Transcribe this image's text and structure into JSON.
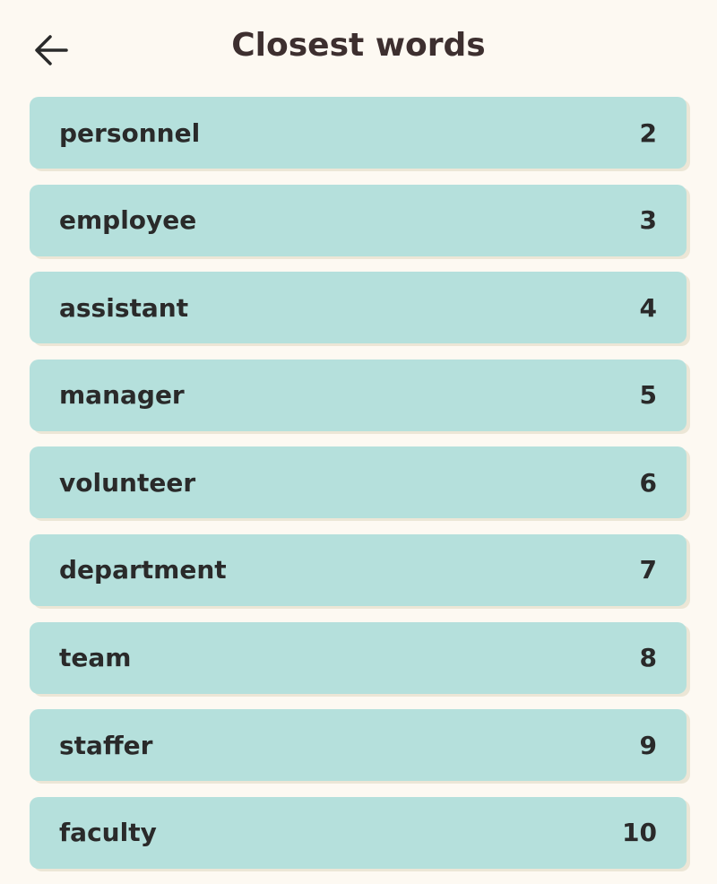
{
  "header": {
    "title": "Closest words"
  },
  "list": [
    {
      "word": "personnel",
      "rank": 2
    },
    {
      "word": "employee",
      "rank": 3
    },
    {
      "word": "assistant",
      "rank": 4
    },
    {
      "word": "manager",
      "rank": 5
    },
    {
      "word": "volunteer",
      "rank": 6
    },
    {
      "word": "department",
      "rank": 7
    },
    {
      "word": "team",
      "rank": 8
    },
    {
      "word": "staffer",
      "rank": 9
    },
    {
      "word": "faculty",
      "rank": 10
    }
  ]
}
